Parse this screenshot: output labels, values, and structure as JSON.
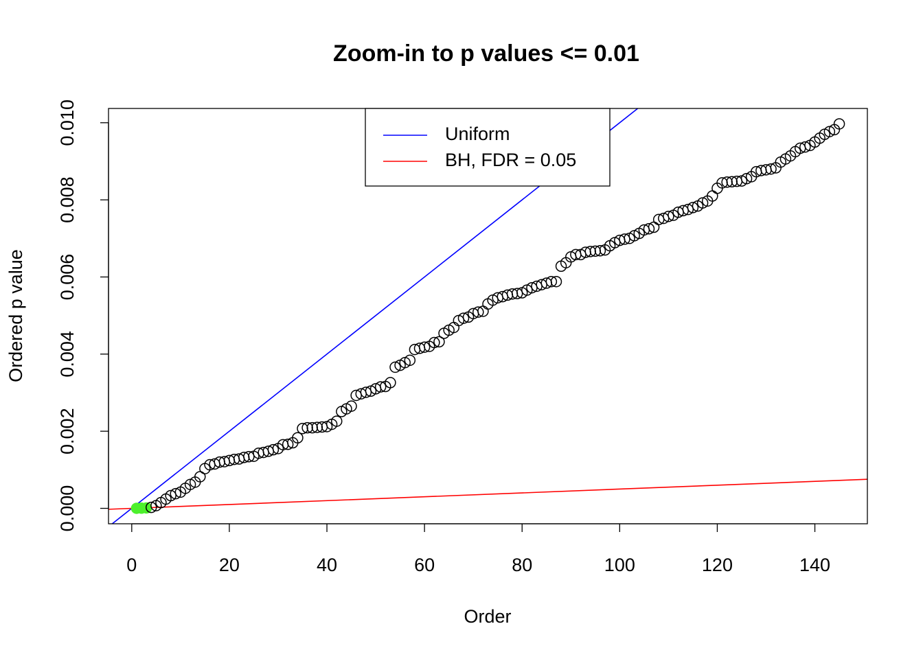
{
  "chart_data": {
    "type": "scatter",
    "title": "Zoom-in to p values <= 0.01",
    "x_label": "Order",
    "y_label": "Ordered p value",
    "x": [
      1,
      2,
      3,
      4,
      5,
      6,
      7,
      8,
      9,
      10,
      11,
      12,
      13,
      14,
      15,
      16,
      17,
      18,
      19,
      20,
      21,
      22,
      23,
      24,
      25,
      26,
      27,
      28,
      29,
      30,
      31,
      32,
      33,
      34,
      35,
      36,
      37,
      38,
      39,
      40,
      41,
      42,
      43,
      44,
      45,
      46,
      47,
      48,
      49,
      50,
      51,
      52,
      53,
      54,
      55,
      56,
      57,
      58,
      59,
      60,
      61,
      62,
      63,
      64,
      65,
      66,
      67,
      68,
      69,
      70,
      71,
      72,
      73,
      74,
      75,
      76,
      77,
      78,
      79,
      80,
      81,
      82,
      83,
      84,
      85,
      86,
      87,
      88,
      89,
      90,
      91,
      92,
      93,
      94,
      95,
      96,
      97,
      98,
      99,
      100,
      101,
      102,
      103,
      104,
      105,
      106,
      107,
      108,
      109,
      110,
      111,
      112,
      113,
      114,
      115,
      116,
      117,
      118,
      119,
      120,
      121,
      122,
      123,
      124,
      125,
      126,
      127,
      128,
      129,
      130,
      131,
      132,
      133,
      134,
      135,
      136,
      137,
      138,
      139,
      140,
      141,
      142,
      143,
      144,
      145
    ],
    "values": [
      1e-06,
      5e-06,
      1e-05,
      2.5e-05,
      7e-05,
      0.00015,
      0.00024,
      0.00033,
      0.00038,
      0.00042,
      0.00052,
      0.00062,
      0.00068,
      0.00082,
      0.00103,
      0.00113,
      0.00115,
      0.0012,
      0.00121,
      0.00124,
      0.00127,
      0.00128,
      0.00132,
      0.00134,
      0.00135,
      0.00143,
      0.00145,
      0.00148,
      0.00152,
      0.00155,
      0.00165,
      0.00166,
      0.0017,
      0.00183,
      0.00207,
      0.00209,
      0.00209,
      0.0021,
      0.00211,
      0.00212,
      0.00218,
      0.00226,
      0.00251,
      0.00258,
      0.00265,
      0.00293,
      0.00297,
      0.00301,
      0.00304,
      0.0031,
      0.00315,
      0.00316,
      0.00326,
      0.00366,
      0.00371,
      0.00378,
      0.00384,
      0.00412,
      0.00415,
      0.00418,
      0.0042,
      0.0043,
      0.00432,
      0.00454,
      0.00462,
      0.00469,
      0.00487,
      0.00493,
      0.00496,
      0.00505,
      0.00509,
      0.00511,
      0.0053,
      0.0054,
      0.00546,
      0.00549,
      0.00553,
      0.00556,
      0.00557,
      0.00559,
      0.00566,
      0.00572,
      0.00576,
      0.0058,
      0.00584,
      0.00588,
      0.00588,
      0.00628,
      0.00637,
      0.00652,
      0.00658,
      0.00658,
      0.00664,
      0.00666,
      0.00667,
      0.00668,
      0.0067,
      0.00681,
      0.00689,
      0.00695,
      0.00698,
      0.007,
      0.00707,
      0.00713,
      0.00722,
      0.00725,
      0.00729,
      0.00749,
      0.00752,
      0.00757,
      0.0076,
      0.00768,
      0.00772,
      0.00775,
      0.0078,
      0.00784,
      0.00792,
      0.00797,
      0.0081,
      0.0083,
      0.00844,
      0.00846,
      0.00847,
      0.00848,
      0.00849,
      0.00855,
      0.0086,
      0.00873,
      0.00876,
      0.00878,
      0.0088,
      0.00883,
      0.00898,
      0.00906,
      0.00914,
      0.00925,
      0.00934,
      0.00937,
      0.00941,
      0.0095,
      0.0096,
      0.0097,
      0.00977,
      0.00982,
      0.00997
    ],
    "color": "#000000",
    "highlight_color": "#4cf02c",
    "lines": [
      {
        "name": "Uniform",
        "color": "#0000ff",
        "slope": 0.0001,
        "intercept": 0
      },
      {
        "name": "BH, FDR = 0.05",
        "color": "#ff0000",
        "slope": 5e-06,
        "intercept": 0
      }
    ],
    "legend": "top",
    "xlim": [
      -4.76,
      150.76
    ],
    "ylim": [
      -0.0004,
      0.01037
    ],
    "xticks": [
      0,
      20,
      40,
      60,
      80,
      100,
      120,
      140
    ],
    "yticks": [
      {
        "value": 0,
        "label": "0.000"
      },
      {
        "value": 0.002,
        "label": "0.002"
      },
      {
        "value": 0.004,
        "label": "0.004"
      },
      {
        "value": 0.006,
        "label": "0.006"
      },
      {
        "value": 0.008,
        "label": "0.008"
      },
      {
        "value": 0.01,
        "label": "0.010"
      }
    ]
  }
}
